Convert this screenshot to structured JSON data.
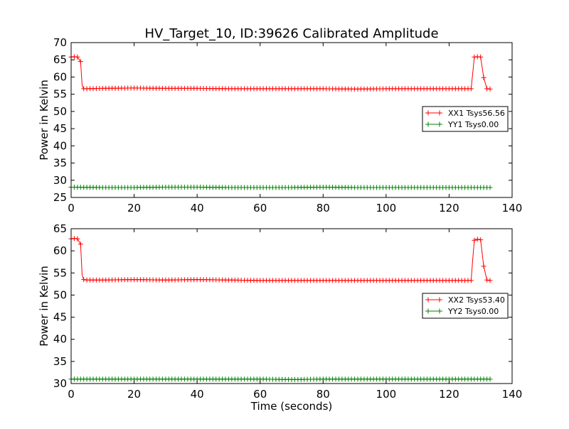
{
  "title": "HV_Target_10, ID:39626 Calibrated Amplitude",
  "chart_data": [
    {
      "type": "line",
      "xlabel": "",
      "ylabel": "Power in Kelvin",
      "xlim": [
        0,
        140
      ],
      "ylim": [
        25,
        70
      ],
      "xticks": [
        0,
        20,
        40,
        60,
        80,
        100,
        120,
        140
      ],
      "yticks": [
        25,
        30,
        35,
        40,
        45,
        50,
        55,
        60,
        65,
        70
      ],
      "grid": false,
      "legend_position": "center-right",
      "series": [
        {
          "name": "XX1 Tsys56.56",
          "color": "#ff0000",
          "marker": "+",
          "x": [
            0,
            1,
            2,
            3,
            3.5,
            4,
            5,
            10,
            20,
            30,
            40,
            50,
            60,
            70,
            80,
            90,
            100,
            110,
            120,
            127,
            127.5,
            128,
            129,
            130,
            131,
            132,
            133
          ],
          "y": [
            65.8,
            65.9,
            65.8,
            64.5,
            57.5,
            56.6,
            56.6,
            56.7,
            56.8,
            56.7,
            56.7,
            56.6,
            56.6,
            56.6,
            56.6,
            56.5,
            56.6,
            56.6,
            56.6,
            56.6,
            61.0,
            65.8,
            65.9,
            65.8,
            59.8,
            56.6,
            56.5
          ]
        },
        {
          "name": "YY1 Tsys0.00",
          "color": "#008000",
          "marker": "+",
          "x": [
            0,
            10,
            20,
            30,
            40,
            50,
            60,
            70,
            80,
            90,
            100,
            110,
            120,
            133
          ],
          "y": [
            28.0,
            27.9,
            27.9,
            28.0,
            28.0,
            27.9,
            27.9,
            27.9,
            28.0,
            27.9,
            27.9,
            27.9,
            27.9,
            27.9
          ]
        }
      ]
    },
    {
      "type": "line",
      "xlabel": "Time (seconds)",
      "ylabel": "Power in Kelvin",
      "xlim": [
        0,
        140
      ],
      "ylim": [
        30,
        65
      ],
      "xticks": [
        0,
        20,
        40,
        60,
        80,
        100,
        120,
        140
      ],
      "yticks": [
        30,
        35,
        40,
        45,
        50,
        55,
        60,
        65
      ],
      "grid": false,
      "legend_position": "lower-right",
      "series": [
        {
          "name": "XX2 Tsys53.40",
          "color": "#ff0000",
          "marker": "+",
          "x": [
            0,
            1,
            2,
            3,
            3.5,
            4,
            5,
            10,
            20,
            30,
            40,
            50,
            60,
            70,
            80,
            90,
            100,
            110,
            120,
            127,
            127.5,
            128,
            129,
            130,
            131,
            132,
            133
          ],
          "y": [
            62.7,
            62.8,
            62.7,
            61.5,
            54.5,
            53.5,
            53.4,
            53.4,
            53.5,
            53.4,
            53.5,
            53.4,
            53.3,
            53.3,
            53.3,
            53.3,
            53.3,
            53.3,
            53.3,
            53.3,
            58.0,
            62.4,
            62.6,
            62.5,
            56.5,
            53.4,
            53.3
          ]
        },
        {
          "name": "YY2 Tsys0.00",
          "color": "#008000",
          "marker": "+",
          "x": [
            0,
            10,
            20,
            30,
            40,
            50,
            60,
            70,
            80,
            90,
            100,
            110,
            120,
            133
          ],
          "y": [
            31.0,
            31.0,
            31.0,
            31.0,
            31.0,
            31.0,
            31.0,
            30.9,
            31.0,
            31.0,
            31.0,
            31.0,
            31.0,
            31.0
          ]
        }
      ]
    }
  ]
}
